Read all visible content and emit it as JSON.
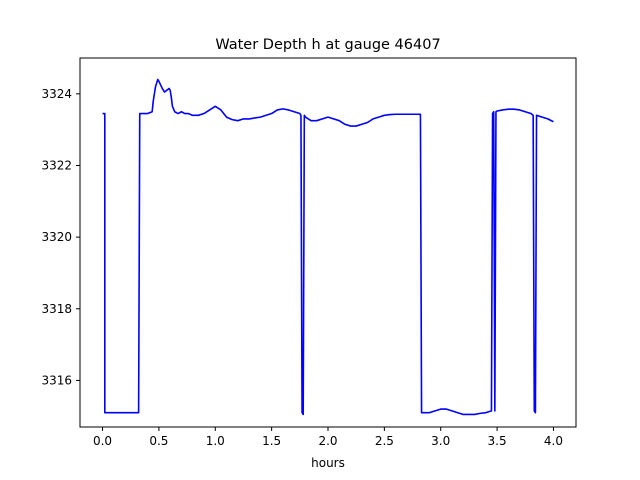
{
  "chart_data": {
    "type": "line",
    "title": "Water Depth h at gauge 46407",
    "xlabel": "hours",
    "ylabel": "",
    "xlim": [
      -0.2,
      4.2
    ],
    "ylim": [
      3314.7,
      3325.0
    ],
    "xticks": [
      0.0,
      0.5,
      1.0,
      1.5,
      2.0,
      2.5,
      3.0,
      3.5,
      4.0
    ],
    "xtick_labels": [
      "0.0",
      "0.5",
      "1.0",
      "1.5",
      "2.0",
      "2.5",
      "3.0",
      "3.5",
      "4.0"
    ],
    "yticks": [
      3316,
      3318,
      3320,
      3322,
      3324
    ],
    "ytick_labels": [
      "3316",
      "3318",
      "3320",
      "3322",
      "3324"
    ],
    "grid": false,
    "colors": {
      "line": "#0000ff",
      "axes": "#000000",
      "background": "#ffffff"
    },
    "series": [
      {
        "name": "",
        "x": [
          0.0,
          0.02,
          0.02,
          0.1,
          0.2,
          0.3,
          0.32,
          0.33,
          0.4,
          0.44,
          0.45,
          0.47,
          0.49,
          0.5,
          0.53,
          0.55,
          0.57,
          0.59,
          0.6,
          0.61,
          0.62,
          0.64,
          0.67,
          0.7,
          0.73,
          0.76,
          0.8,
          0.85,
          0.9,
          0.95,
          1.0,
          1.05,
          1.1,
          1.15,
          1.2,
          1.25,
          1.3,
          1.4,
          1.5,
          1.55,
          1.6,
          1.65,
          1.7,
          1.75,
          1.76,
          1.77,
          1.78,
          1.79,
          1.8,
          1.85,
          1.9,
          1.95,
          2.0,
          2.05,
          2.1,
          2.15,
          2.2,
          2.25,
          2.3,
          2.35,
          2.4,
          2.45,
          2.5,
          2.55,
          2.6,
          2.65,
          2.7,
          2.75,
          2.8,
          2.82,
          2.83,
          2.85,
          2.9,
          2.95,
          3.0,
          3.05,
          3.1,
          3.2,
          3.25,
          3.3,
          3.35,
          3.4,
          3.45,
          3.46,
          3.47,
          3.48,
          3.49,
          3.5,
          3.55,
          3.6,
          3.65,
          3.7,
          3.75,
          3.8,
          3.82,
          3.83,
          3.84,
          3.85,
          3.9,
          3.95,
          4.0
        ],
        "y": [
          3323.45,
          3323.45,
          3315.1,
          3315.1,
          3315.1,
          3315.1,
          3315.1,
          3323.45,
          3323.45,
          3323.5,
          3323.8,
          3324.2,
          3324.4,
          3324.35,
          3324.15,
          3324.05,
          3324.1,
          3324.15,
          3324.1,
          3323.9,
          3323.65,
          3323.5,
          3323.45,
          3323.5,
          3323.45,
          3323.45,
          3323.4,
          3323.4,
          3323.45,
          3323.55,
          3323.65,
          3323.55,
          3323.35,
          3323.28,
          3323.25,
          3323.3,
          3323.3,
          3323.35,
          3323.45,
          3323.55,
          3323.58,
          3323.55,
          3323.5,
          3323.45,
          3323.4,
          3315.1,
          3315.05,
          3323.4,
          3323.35,
          3323.25,
          3323.25,
          3323.3,
          3323.35,
          3323.3,
          3323.25,
          3323.15,
          3323.1,
          3323.1,
          3323.15,
          3323.2,
          3323.3,
          3323.35,
          3323.4,
          3323.42,
          3323.43,
          3323.43,
          3323.43,
          3323.43,
          3323.43,
          3323.43,
          3315.1,
          3315.1,
          3315.1,
          3315.15,
          3315.2,
          3315.2,
          3315.15,
          3315.05,
          3315.05,
          3315.05,
          3315.08,
          3315.1,
          3315.15,
          3323.45,
          3323.5,
          3315.15,
          3323.5,
          3323.52,
          3323.55,
          3323.57,
          3323.57,
          3323.55,
          3323.5,
          3323.45,
          3323.4,
          3315.15,
          3315.1,
          3323.4,
          3323.35,
          3323.3,
          3323.22
        ]
      }
    ]
  }
}
